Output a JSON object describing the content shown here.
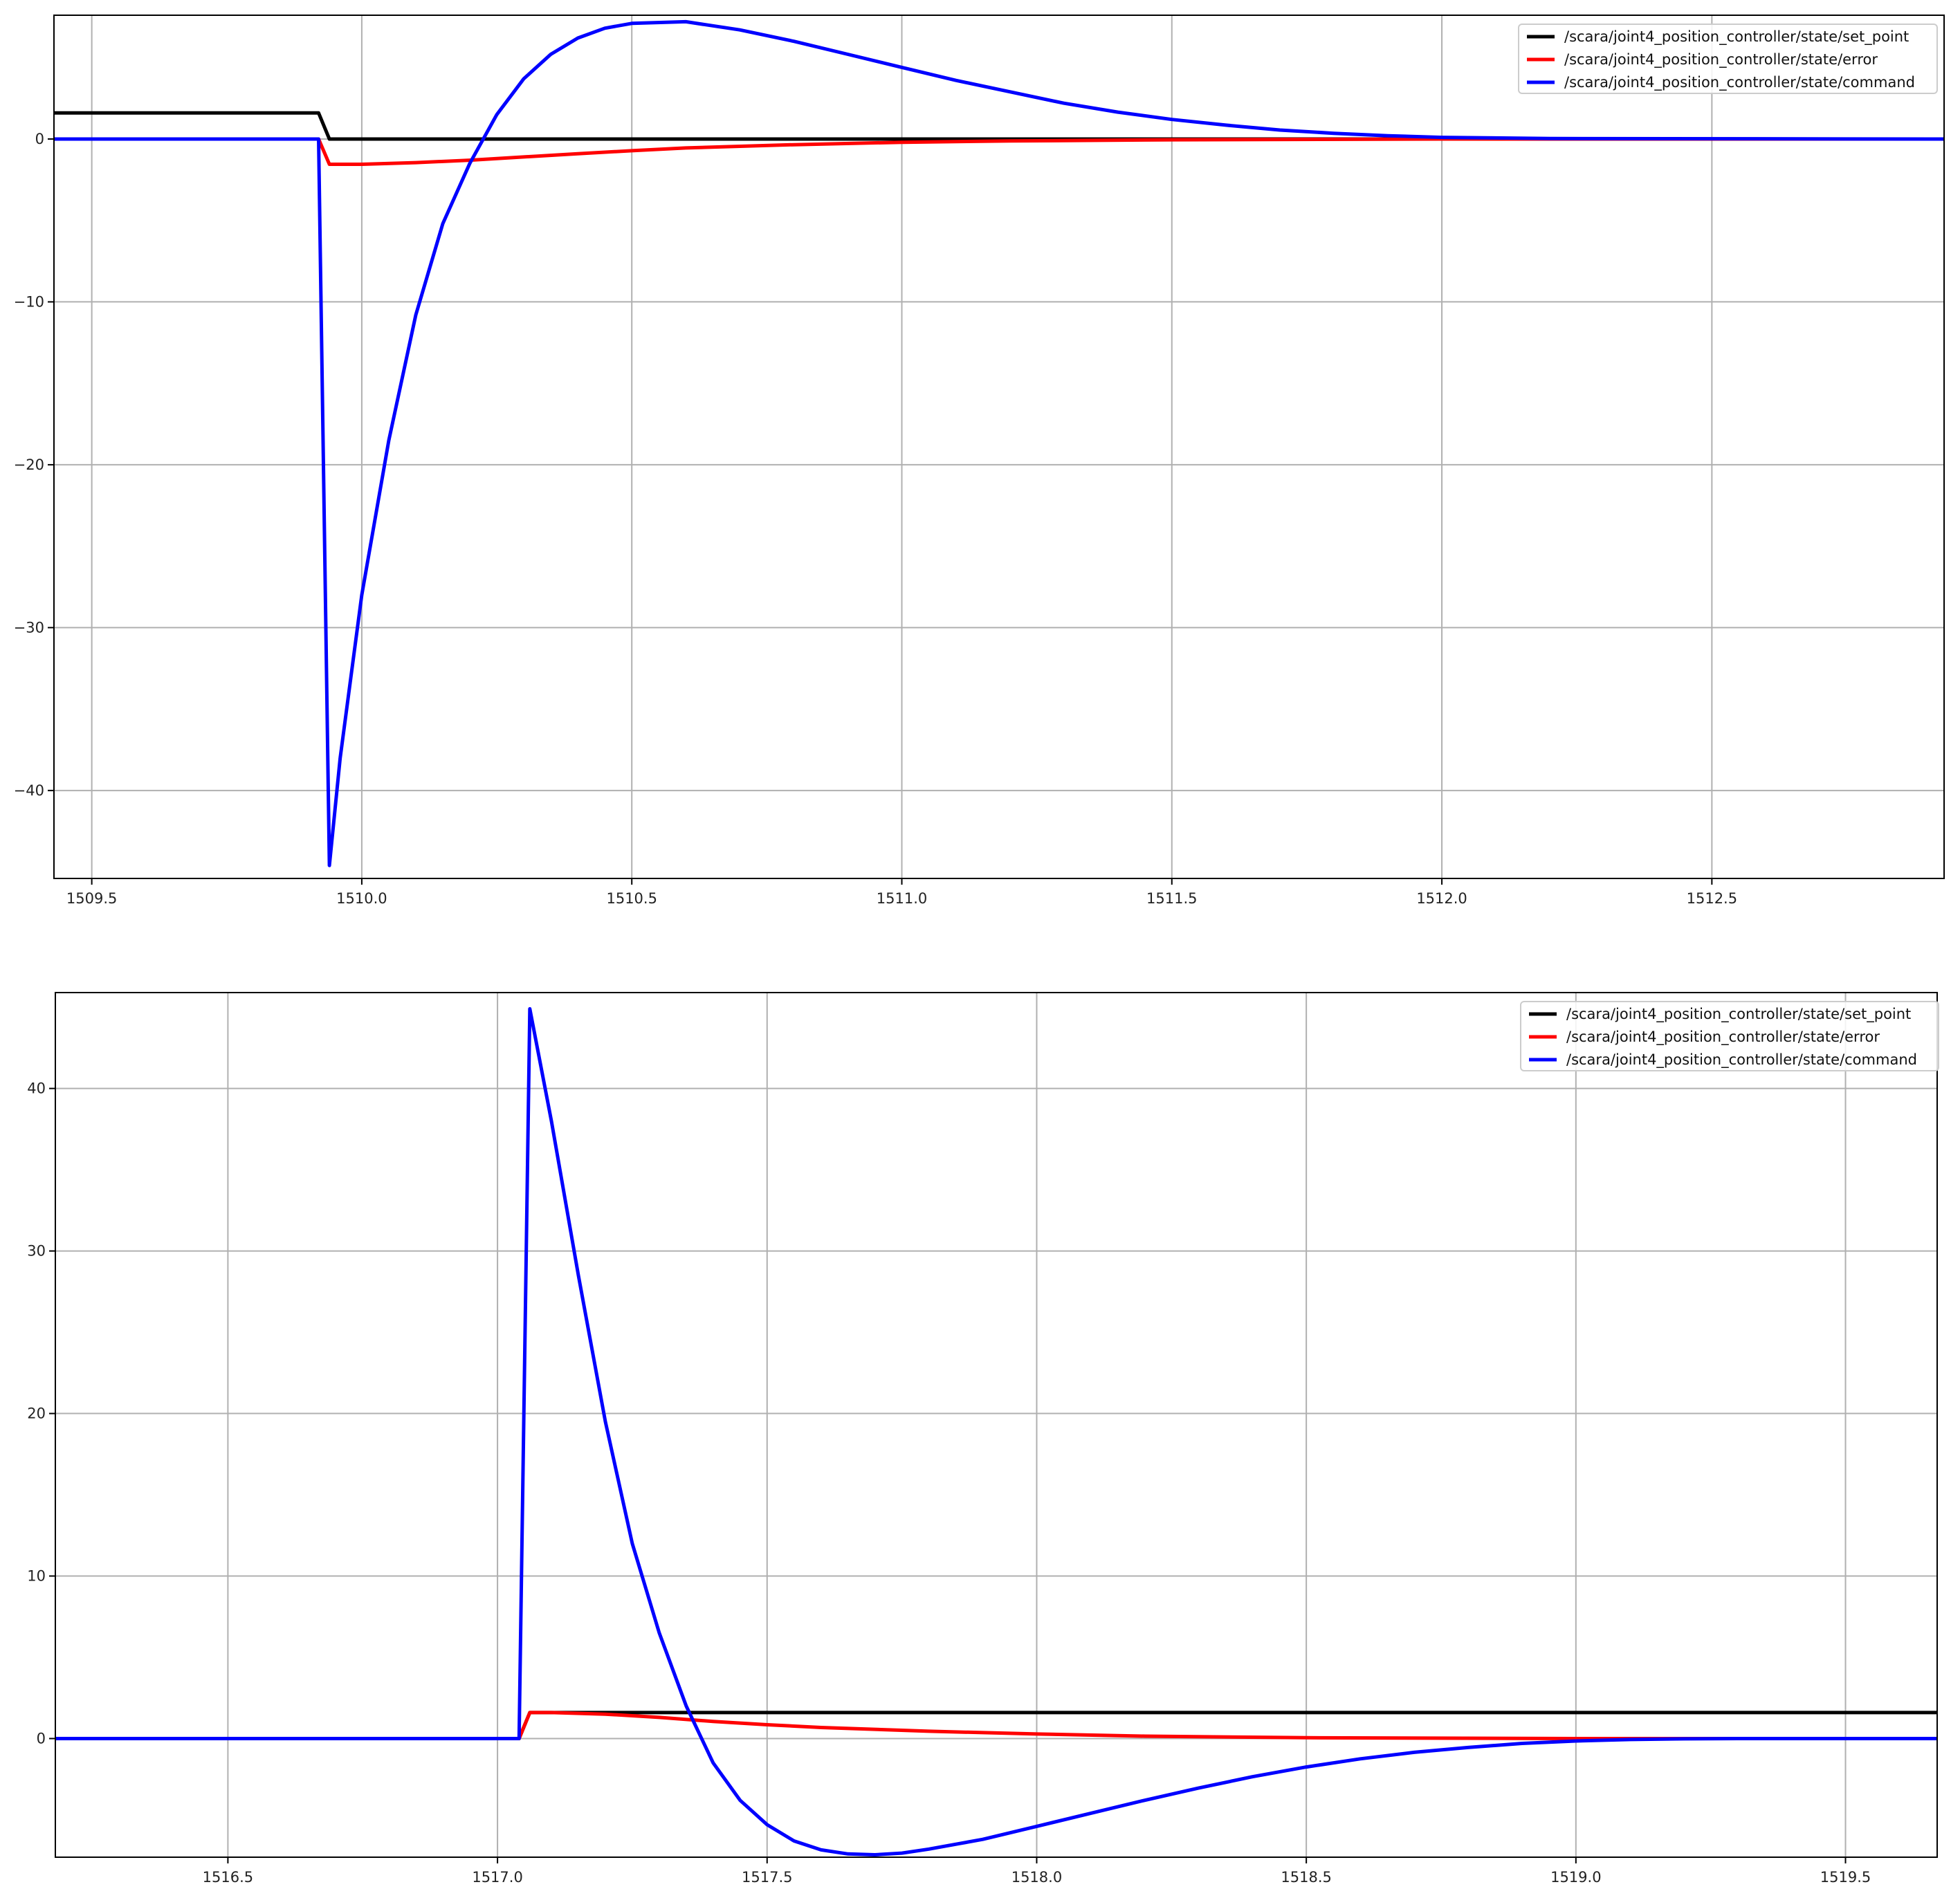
{
  "colors": {
    "set_point": "#000000",
    "error": "#ff0000",
    "command": "#0000ff",
    "grid": "#b0b0b0",
    "frame": "#000000",
    "background": "#ffffff"
  },
  "chart_data": [
    {
      "type": "line",
      "grid": true,
      "legend_position": "top-right",
      "xlim": [
        1509.43,
        1512.93
      ],
      "ylim": [
        -45.4,
        7.6
      ],
      "xticks": [
        1509.5,
        1510.0,
        1510.5,
        1511.0,
        1511.5,
        1512.0,
        1512.5
      ],
      "xtick_labels": [
        "1509.5",
        "1510.0",
        "1510.5",
        "1511.0",
        "1511.5",
        "1512.0",
        "1512.5"
      ],
      "yticks": [
        0,
        -10,
        -20,
        -30,
        -40
      ],
      "ytick_labels": [
        "0",
        "−10",
        "−20",
        "−30",
        "−40"
      ],
      "series": [
        {
          "name": "/scara/joint4_position_controller/state/set_point",
          "color": "#000000",
          "x": [
            1509.43,
            1509.92,
            1509.94,
            1512.93
          ],
          "y": [
            1.6,
            1.6,
            0.0,
            0.0
          ]
        },
        {
          "name": "/scara/joint4_position_controller/state/error",
          "color": "#ff0000",
          "x": [
            1509.43,
            1509.92,
            1509.94,
            1510.0,
            1510.1,
            1510.2,
            1510.3,
            1510.4,
            1510.5,
            1510.6,
            1510.8,
            1511.0,
            1511.2,
            1511.5,
            1512.0,
            1512.93
          ],
          "y": [
            0.0,
            0.0,
            -1.55,
            -1.55,
            -1.45,
            -1.3,
            -1.1,
            -0.9,
            -0.72,
            -0.55,
            -0.35,
            -0.2,
            -0.12,
            -0.05,
            0.0,
            0.0
          ]
        },
        {
          "name": "/scara/joint4_position_controller/state/command",
          "color": "#0000ff",
          "x": [
            1509.43,
            1509.92,
            1509.94,
            1509.96,
            1510.0,
            1510.05,
            1510.1,
            1510.15,
            1510.2,
            1510.25,
            1510.3,
            1510.35,
            1510.4,
            1510.45,
            1510.5,
            1510.6,
            1510.7,
            1510.8,
            1510.9,
            1511.0,
            1511.1,
            1511.2,
            1511.3,
            1511.4,
            1511.5,
            1511.6,
            1511.7,
            1511.8,
            1511.9,
            1512.0,
            1512.2,
            1512.93
          ],
          "y": [
            0.0,
            0.0,
            -44.6,
            -38.0,
            -28.0,
            -18.5,
            -10.8,
            -5.2,
            -1.5,
            1.5,
            3.7,
            5.2,
            6.2,
            6.8,
            7.1,
            7.2,
            6.7,
            6.0,
            5.2,
            4.4,
            3.6,
            2.9,
            2.2,
            1.65,
            1.2,
            0.85,
            0.55,
            0.35,
            0.2,
            0.1,
            0.03,
            0.0
          ]
        }
      ]
    },
    {
      "type": "line",
      "grid": true,
      "legend_position": "top-right",
      "xlim": [
        1516.18,
        1519.67
      ],
      "ylim": [
        -7.3,
        45.9
      ],
      "xticks": [
        1516.5,
        1517.0,
        1517.5,
        1518.0,
        1518.5,
        1519.0,
        1519.5
      ],
      "xtick_labels": [
        "1516.5",
        "1517.0",
        "1517.5",
        "1518.0",
        "1518.5",
        "1519.0",
        "1519.5"
      ],
      "yticks": [
        0,
        10,
        20,
        30,
        40
      ],
      "ytick_labels": [
        "0",
        "10",
        "20",
        "30",
        "40"
      ],
      "series": [
        {
          "name": "/scara/joint4_position_controller/state/set_point",
          "color": "#000000",
          "x": [
            1516.18,
            1517.04,
            1517.06,
            1519.67
          ],
          "y": [
            0.0,
            0.0,
            1.6,
            1.6
          ]
        },
        {
          "name": "/scara/joint4_position_controller/state/error",
          "color": "#ff0000",
          "x": [
            1516.18,
            1517.04,
            1517.06,
            1517.1,
            1517.2,
            1517.3,
            1517.4,
            1517.5,
            1517.6,
            1517.8,
            1518.0,
            1518.2,
            1518.5,
            1519.0,
            1519.67
          ],
          "y": [
            0.0,
            0.0,
            1.6,
            1.6,
            1.5,
            1.3,
            1.05,
            0.85,
            0.68,
            0.45,
            0.28,
            0.15,
            0.05,
            0.0,
            0.0
          ]
        },
        {
          "name": "/scara/joint4_position_controller/state/command",
          "color": "#0000ff",
          "x": [
            1516.18,
            1517.04,
            1517.06,
            1517.1,
            1517.15,
            1517.2,
            1517.25,
            1517.3,
            1517.35,
            1517.4,
            1517.45,
            1517.5,
            1517.55,
            1517.6,
            1517.65,
            1517.7,
            1517.75,
            1517.8,
            1517.9,
            1518.0,
            1518.1,
            1518.2,
            1518.3,
            1518.4,
            1518.5,
            1518.6,
            1518.7,
            1518.8,
            1518.9,
            1519.0,
            1519.1,
            1519.2,
            1519.3,
            1519.67
          ],
          "y": [
            0.0,
            0.0,
            44.9,
            38.0,
            28.5,
            19.5,
            12.0,
            6.5,
            2.0,
            -1.5,
            -3.8,
            -5.3,
            -6.3,
            -6.85,
            -7.1,
            -7.15,
            -7.05,
            -6.8,
            -6.2,
            -5.4,
            -4.6,
            -3.8,
            -3.05,
            -2.35,
            -1.75,
            -1.25,
            -0.85,
            -0.55,
            -0.3,
            -0.15,
            -0.06,
            -0.02,
            0.0,
            0.0
          ]
        }
      ]
    }
  ]
}
